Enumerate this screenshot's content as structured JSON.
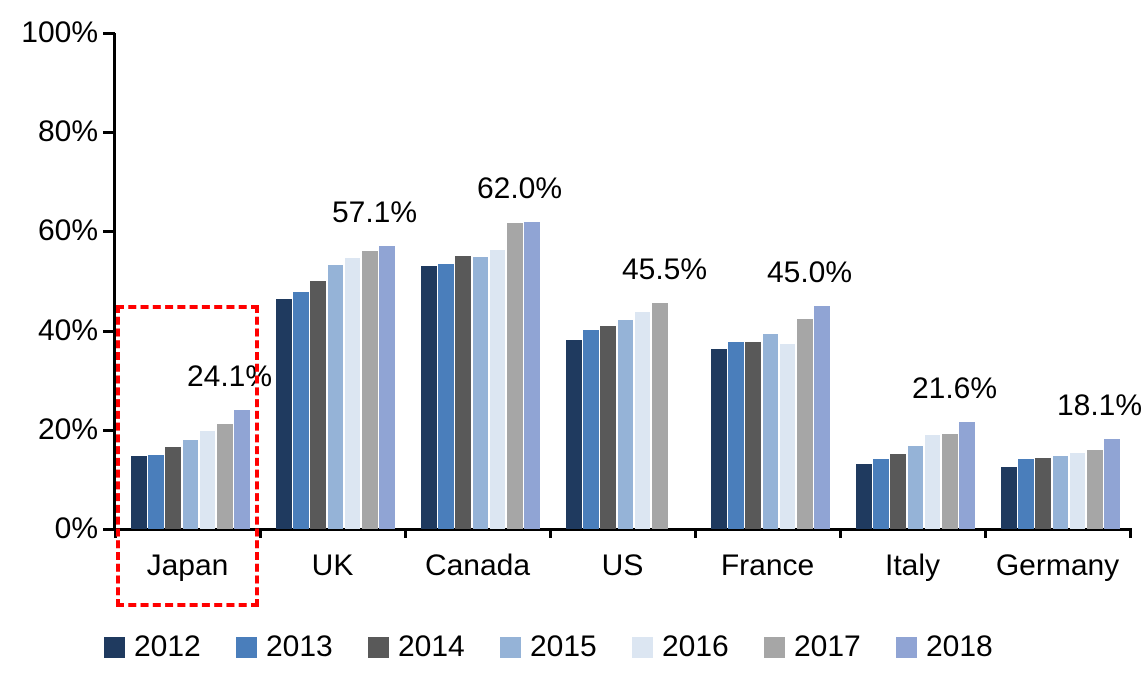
{
  "chart_data": {
    "type": "bar",
    "title": "",
    "categories": [
      "Japan",
      "UK",
      "Canada",
      "US",
      "France",
      "Italy",
      "Germany"
    ],
    "series": [
      {
        "name": "2012",
        "color": "#1F3A5F",
        "values": [
          14.8,
          46.3,
          53.1,
          38.2,
          36.4,
          13.2,
          12.5
        ]
      },
      {
        "name": "2013",
        "color": "#4A7EBB",
        "values": [
          15.0,
          47.8,
          53.5,
          40.1,
          37.7,
          14.1,
          14.1
        ]
      },
      {
        "name": "2014",
        "color": "#595959",
        "values": [
          16.5,
          50.0,
          55.0,
          41.0,
          37.7,
          15.2,
          14.3
        ]
      },
      {
        "name": "2015",
        "color": "#95B3D7",
        "values": [
          18.0,
          53.3,
          54.8,
          42.1,
          39.3,
          16.8,
          14.7
        ]
      },
      {
        "name": "2016",
        "color": "#DCE6F2",
        "values": [
          19.7,
          54.6,
          56.3,
          43.7,
          37.3,
          19.0,
          15.4
        ]
      },
      {
        "name": "2017",
        "color": "#A6A6A6",
        "values": [
          21.1,
          56.0,
          61.7,
          45.5,
          42.3,
          19.2,
          15.9
        ]
      },
      {
        "name": "2018",
        "color": "#90A4D4",
        "values": [
          24.1,
          57.1,
          62.0,
          null,
          45.0,
          21.6,
          18.1
        ]
      }
    ],
    "data_labels": [
      "24.1%",
      "57.1%",
      "62.0%",
      "45.5%",
      "45.0%",
      "21.6%",
      "18.1%"
    ],
    "ylim": [
      0,
      100
    ],
    "yticks": [
      0,
      20,
      40,
      60,
      80,
      100
    ],
    "ytick_labels": [
      "0%",
      "20%",
      "40%",
      "60%",
      "80%",
      "100%"
    ],
    "grid": false,
    "legend_position": "bottom",
    "legend_entries": [
      "2012",
      "2013",
      "2014",
      "2015",
      "2016",
      "2017",
      "2018"
    ],
    "annotations": {
      "highlight_category": "Japan",
      "highlight_style": "red-dashed-rectangle"
    },
    "colors": {
      "axis": "#000000",
      "text": "#000000",
      "highlight": "#FF0000",
      "background": "#FFFFFF"
    }
  }
}
